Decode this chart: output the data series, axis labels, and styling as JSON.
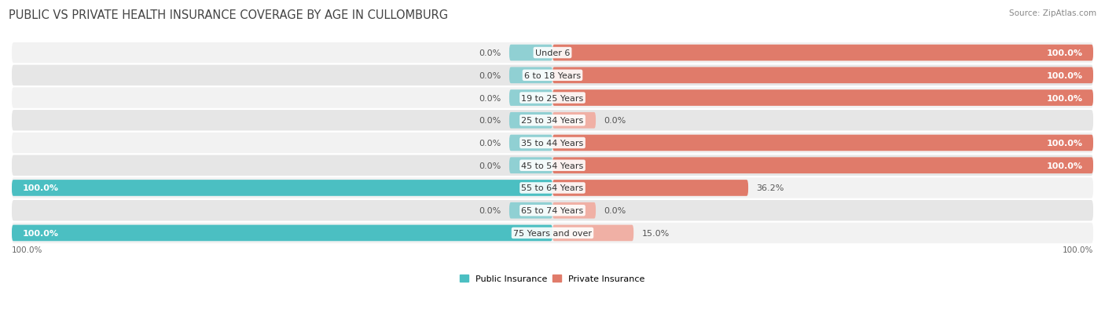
{
  "title": "PUBLIC VS PRIVATE HEALTH INSURANCE COVERAGE BY AGE IN CULLOMBURG",
  "source": "Source: ZipAtlas.com",
  "categories": [
    "Under 6",
    "6 to 18 Years",
    "19 to 25 Years",
    "25 to 34 Years",
    "35 to 44 Years",
    "45 to 54 Years",
    "55 to 64 Years",
    "65 to 74 Years",
    "75 Years and over"
  ],
  "public_values": [
    0.0,
    0.0,
    0.0,
    0.0,
    0.0,
    0.0,
    100.0,
    0.0,
    100.0
  ],
  "private_values": [
    100.0,
    100.0,
    100.0,
    0.0,
    100.0,
    100.0,
    36.2,
    0.0,
    15.0
  ],
  "public_color": "#4bbfc2",
  "private_color": "#e07b6a",
  "public_color_small": "#90d0d3",
  "private_color_small": "#f0b0a5",
  "row_bg_color_light": "#f2f2f2",
  "row_bg_color_dark": "#e6e6e6",
  "legend_public": "Public Insurance",
  "legend_private": "Private Insurance",
  "title_fontsize": 10.5,
  "source_fontsize": 7.5,
  "value_fontsize": 8,
  "category_fontsize": 8,
  "axis_label_fontsize": 7.5,
  "max_val": 100,
  "stub_size": 8
}
